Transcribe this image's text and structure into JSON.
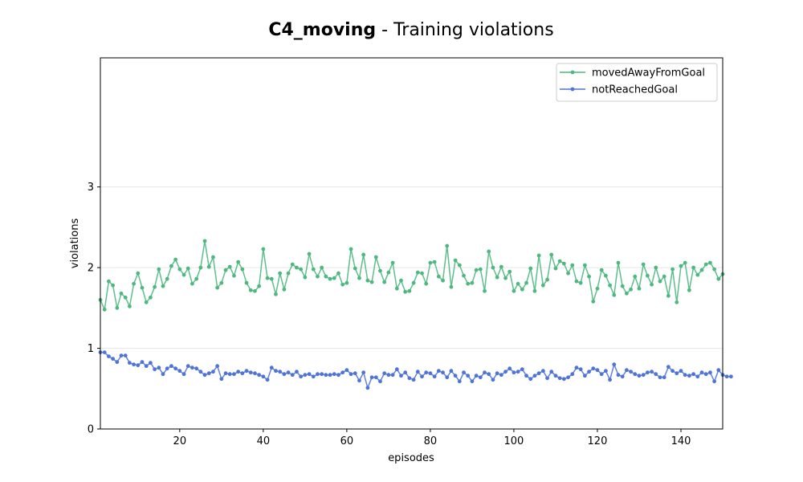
{
  "chart_data": {
    "type": "line",
    "title_bold": "C4_moving",
    "title_rest": " - Training violations",
    "xlabel": "episodes",
    "ylabel": "violations",
    "xlim": [
      1,
      150
    ],
    "ylim": [
      0,
      4.6
    ],
    "xticks": [
      20,
      40,
      60,
      80,
      100,
      120,
      140
    ],
    "yticks": [
      0,
      1,
      2,
      3
    ],
    "grid": "horizontal",
    "legend_position": "top-right",
    "series": [
      {
        "name": "movedAwayFromGoal",
        "color": "#4db87f",
        "values": [
          1.6,
          1.48,
          1.83,
          1.78,
          1.5,
          1.68,
          1.63,
          1.52,
          1.8,
          1.93,
          1.75,
          1.57,
          1.63,
          1.76,
          1.98,
          1.77,
          1.86,
          2.02,
          2.1,
          1.98,
          1.91,
          1.99,
          1.8,
          1.86,
          2.0,
          2.33,
          2.01,
          2.13,
          1.75,
          1.81,
          1.97,
          2.01,
          1.9,
          2.07,
          1.98,
          1.81,
          1.72,
          1.71,
          1.77,
          2.23,
          1.87,
          1.86,
          1.67,
          1.93,
          1.73,
          1.93,
          2.04,
          2.0,
          1.98,
          1.88,
          2.17,
          1.98,
          1.89,
          2.0,
          1.89,
          1.86,
          1.87,
          1.93,
          1.79,
          1.81,
          2.23,
          1.99,
          1.87,
          2.16,
          1.84,
          1.82,
          2.13,
          1.96,
          1.82,
          1.94,
          2.06,
          1.74,
          1.84,
          1.7,
          1.71,
          1.81,
          1.94,
          1.93,
          1.8,
          2.06,
          2.07,
          1.89,
          1.84,
          2.27,
          1.76,
          2.09,
          2.03,
          1.9,
          1.8,
          1.81,
          1.97,
          1.98,
          1.71,
          2.2,
          2.0,
          1.88,
          2.01,
          1.87,
          1.95,
          1.71,
          1.8,
          1.73,
          1.81,
          1.99,
          1.71,
          2.15,
          1.78,
          1.85,
          2.16,
          1.99,
          2.08,
          2.05,
          1.93,
          2.03,
          1.83,
          1.81,
          2.03,
          1.89,
          1.58,
          1.74,
          1.97,
          1.9,
          1.78,
          1.66,
          2.06,
          1.77,
          1.68,
          1.73,
          1.89,
          1.74,
          2.04,
          1.9,
          1.79,
          2.0,
          1.83,
          1.89,
          1.65,
          1.98,
          1.57,
          2.02,
          2.06,
          1.72,
          2.0,
          1.91,
          1.97,
          2.04,
          2.06,
          1.98,
          1.86,
          1.92
        ]
      },
      {
        "name": "notReachedGoal",
        "color": "#4f74d9",
        "values": [
          0.95,
          0.95,
          0.9,
          0.87,
          0.83,
          0.91,
          0.91,
          0.82,
          0.8,
          0.79,
          0.83,
          0.78,
          0.82,
          0.74,
          0.76,
          0.68,
          0.75,
          0.78,
          0.75,
          0.72,
          0.68,
          0.78,
          0.76,
          0.75,
          0.71,
          0.67,
          0.69,
          0.71,
          0.78,
          0.62,
          0.69,
          0.68,
          0.68,
          0.71,
          0.69,
          0.72,
          0.7,
          0.69,
          0.67,
          0.65,
          0.61,
          0.76,
          0.72,
          0.71,
          0.68,
          0.7,
          0.67,
          0.71,
          0.65,
          0.67,
          0.68,
          0.65,
          0.68,
          0.68,
          0.67,
          0.67,
          0.68,
          0.67,
          0.7,
          0.73,
          0.68,
          0.69,
          0.6,
          0.7,
          0.51,
          0.64,
          0.64,
          0.59,
          0.69,
          0.67,
          0.67,
          0.74,
          0.66,
          0.7,
          0.63,
          0.61,
          0.71,
          0.65,
          0.7,
          0.69,
          0.65,
          0.72,
          0.7,
          0.64,
          0.72,
          0.66,
          0.59,
          0.7,
          0.66,
          0.59,
          0.66,
          0.64,
          0.7,
          0.68,
          0.61,
          0.69,
          0.67,
          0.71,
          0.75,
          0.7,
          0.71,
          0.74,
          0.66,
          0.62,
          0.66,
          0.69,
          0.72,
          0.63,
          0.71,
          0.66,
          0.63,
          0.62,
          0.64,
          0.68,
          0.76,
          0.74,
          0.66,
          0.71,
          0.75,
          0.73,
          0.68,
          0.72,
          0.61,
          0.8,
          0.67,
          0.65,
          0.73,
          0.71,
          0.68,
          0.66,
          0.67,
          0.7,
          0.71,
          0.68,
          0.64,
          0.64,
          0.77,
          0.72,
          0.69,
          0.72,
          0.67,
          0.66,
          0.68,
          0.65,
          0.7,
          0.68,
          0.7,
          0.59,
          0.73,
          0.67,
          0.65,
          0.65
        ]
      }
    ]
  }
}
